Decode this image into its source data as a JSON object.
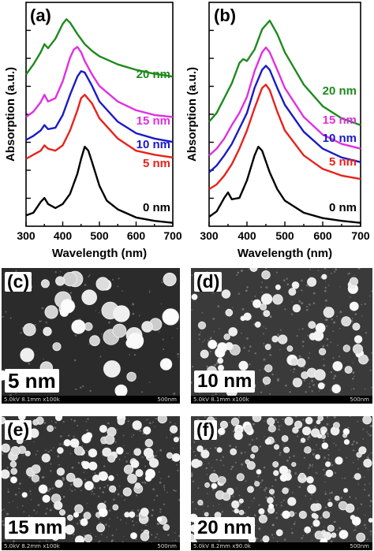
{
  "chart_data": [
    {
      "panel": "(a)",
      "type": "line",
      "xlabel": "Wavelength (nm)",
      "ylabel": "Absorption (a.u.)",
      "xlim": [
        300,
        700
      ],
      "xticks": [
        "300",
        "400",
        "500",
        "600",
        "700"
      ],
      "series": [
        {
          "name": "0 nm",
          "color": "#000000",
          "x": [
            300,
            320,
            340,
            350,
            360,
            380,
            400,
            420,
            440,
            450,
            460,
            470,
            480,
            500,
            520,
            550,
            600,
            650,
            700
          ],
          "y": [
            0.16,
            0.2,
            0.36,
            0.42,
            0.33,
            0.27,
            0.33,
            0.48,
            0.78,
            1.0,
            1.18,
            1.12,
            0.95,
            0.6,
            0.38,
            0.25,
            0.13,
            0.08,
            0.05
          ]
        },
        {
          "name": "5 nm",
          "color": "#e8221c",
          "x": [
            300,
            320,
            340,
            350,
            360,
            380,
            400,
            420,
            440,
            450,
            460,
            480,
            500,
            550,
            600,
            650,
            700
          ],
          "y": [
            1.0,
            1.06,
            1.12,
            1.2,
            1.15,
            1.12,
            1.2,
            1.42,
            1.72,
            1.9,
            1.95,
            1.82,
            1.6,
            1.3,
            1.12,
            1.06,
            1.02
          ]
        },
        {
          "name": "10 nm",
          "color": "#1a1ac8",
          "x": [
            300,
            320,
            340,
            350,
            360,
            380,
            400,
            420,
            440,
            450,
            460,
            480,
            500,
            550,
            600,
            650,
            700
          ],
          "y": [
            1.28,
            1.34,
            1.42,
            1.5,
            1.44,
            1.46,
            1.65,
            1.95,
            2.22,
            2.3,
            2.28,
            2.08,
            1.85,
            1.55,
            1.38,
            1.3,
            1.25
          ]
        },
        {
          "name": "15 nm",
          "color": "#e030e0",
          "x": [
            300,
            320,
            340,
            350,
            360,
            380,
            400,
            420,
            430,
            440,
            450,
            460,
            480,
            500,
            550,
            600,
            650,
            700
          ],
          "y": [
            1.62,
            1.7,
            1.84,
            1.95,
            1.85,
            1.9,
            2.15,
            2.5,
            2.62,
            2.66,
            2.58,
            2.45,
            2.25,
            2.08,
            1.85,
            1.72,
            1.65,
            1.62
          ]
        },
        {
          "name": "20 nm",
          "color": "#1e8a1e",
          "x": [
            300,
            320,
            340,
            350,
            360,
            380,
            400,
            410,
            420,
            440,
            460,
            480,
            500,
            550,
            600,
            650,
            700
          ],
          "y": [
            2.25,
            2.4,
            2.58,
            2.7,
            2.64,
            2.78,
            3.0,
            3.07,
            3.02,
            2.85,
            2.7,
            2.6,
            2.52,
            2.4,
            2.32,
            2.26,
            2.22
          ]
        }
      ]
    },
    {
      "panel": "(b)",
      "type": "line",
      "xlabel": "Wavelength (nm)",
      "ylabel": "",
      "xlim": [
        300,
        700
      ],
      "xticks": [
        "300",
        "400",
        "500",
        "600",
        "700"
      ],
      "series": [
        {
          "name": "0 nm",
          "color": "#000000",
          "x": [
            300,
            320,
            340,
            350,
            360,
            380,
            400,
            420,
            430,
            440,
            460,
            480,
            500,
            550,
            600,
            650,
            700
          ],
          "y": [
            0.14,
            0.22,
            0.42,
            0.5,
            0.4,
            0.42,
            0.68,
            1.05,
            1.18,
            1.12,
            0.8,
            0.55,
            0.38,
            0.2,
            0.12,
            0.08,
            0.05
          ]
        },
        {
          "name": "5 nm",
          "color": "#e8221c",
          "x": [
            300,
            320,
            340,
            360,
            380,
            400,
            420,
            440,
            450,
            460,
            480,
            500,
            550,
            600,
            650,
            700
          ],
          "y": [
            0.55,
            0.62,
            0.75,
            0.92,
            1.15,
            1.42,
            1.75,
            2.05,
            2.1,
            2.02,
            1.7,
            1.42,
            1.05,
            0.85,
            0.75,
            0.7
          ]
        },
        {
          "name": "10 nm",
          "color": "#1a1ac8",
          "x": [
            300,
            320,
            340,
            360,
            380,
            400,
            420,
            440,
            450,
            460,
            480,
            500,
            550,
            600,
            650,
            700
          ],
          "y": [
            0.8,
            0.9,
            1.05,
            1.22,
            1.45,
            1.68,
            2.05,
            2.32,
            2.38,
            2.32,
            2.05,
            1.8,
            1.4,
            1.15,
            1.02,
            0.95
          ]
        },
        {
          "name": "15 nm",
          "color": "#e030e0",
          "x": [
            300,
            320,
            340,
            360,
            380,
            400,
            420,
            440,
            450,
            460,
            480,
            500,
            550,
            600,
            650,
            700
          ],
          "y": [
            1.05,
            1.15,
            1.3,
            1.5,
            1.68,
            1.92,
            2.3,
            2.58,
            2.65,
            2.58,
            2.32,
            2.05,
            1.62,
            1.36,
            1.22,
            1.15
          ]
        },
        {
          "name": "20 nm",
          "color": "#1e8a1e",
          "x": [
            300,
            320,
            340,
            360,
            380,
            390,
            400,
            420,
            440,
            460,
            480,
            500,
            550,
            600,
            650,
            700
          ],
          "y": [
            1.55,
            1.68,
            1.9,
            2.12,
            2.42,
            2.48,
            2.45,
            2.62,
            2.92,
            3.05,
            2.85,
            2.58,
            2.1,
            1.78,
            1.6,
            1.5
          ]
        }
      ]
    }
  ],
  "figure": {
    "panel_a_label": "(a)",
    "panel_b_label": "(b)",
    "sem_panels": [
      {
        "tag": "(c)",
        "label": "5 nm",
        "meta": "5.0kV 8.1mm x100k",
        "scale": "500nm"
      },
      {
        "tag": "(d)",
        "label": "10 nm",
        "meta": "5.0kV 8.1mm x100k",
        "scale": "500nm"
      },
      {
        "tag": "(e)",
        "label": "15 nm",
        "meta": "5.0kV 8.2mm x100k",
        "scale": "500nm"
      },
      {
        "tag": "(f)",
        "label": "20 nm",
        "meta": "5.0kV 8.2mm x90.0k",
        "scale": "500nm"
      }
    ]
  }
}
